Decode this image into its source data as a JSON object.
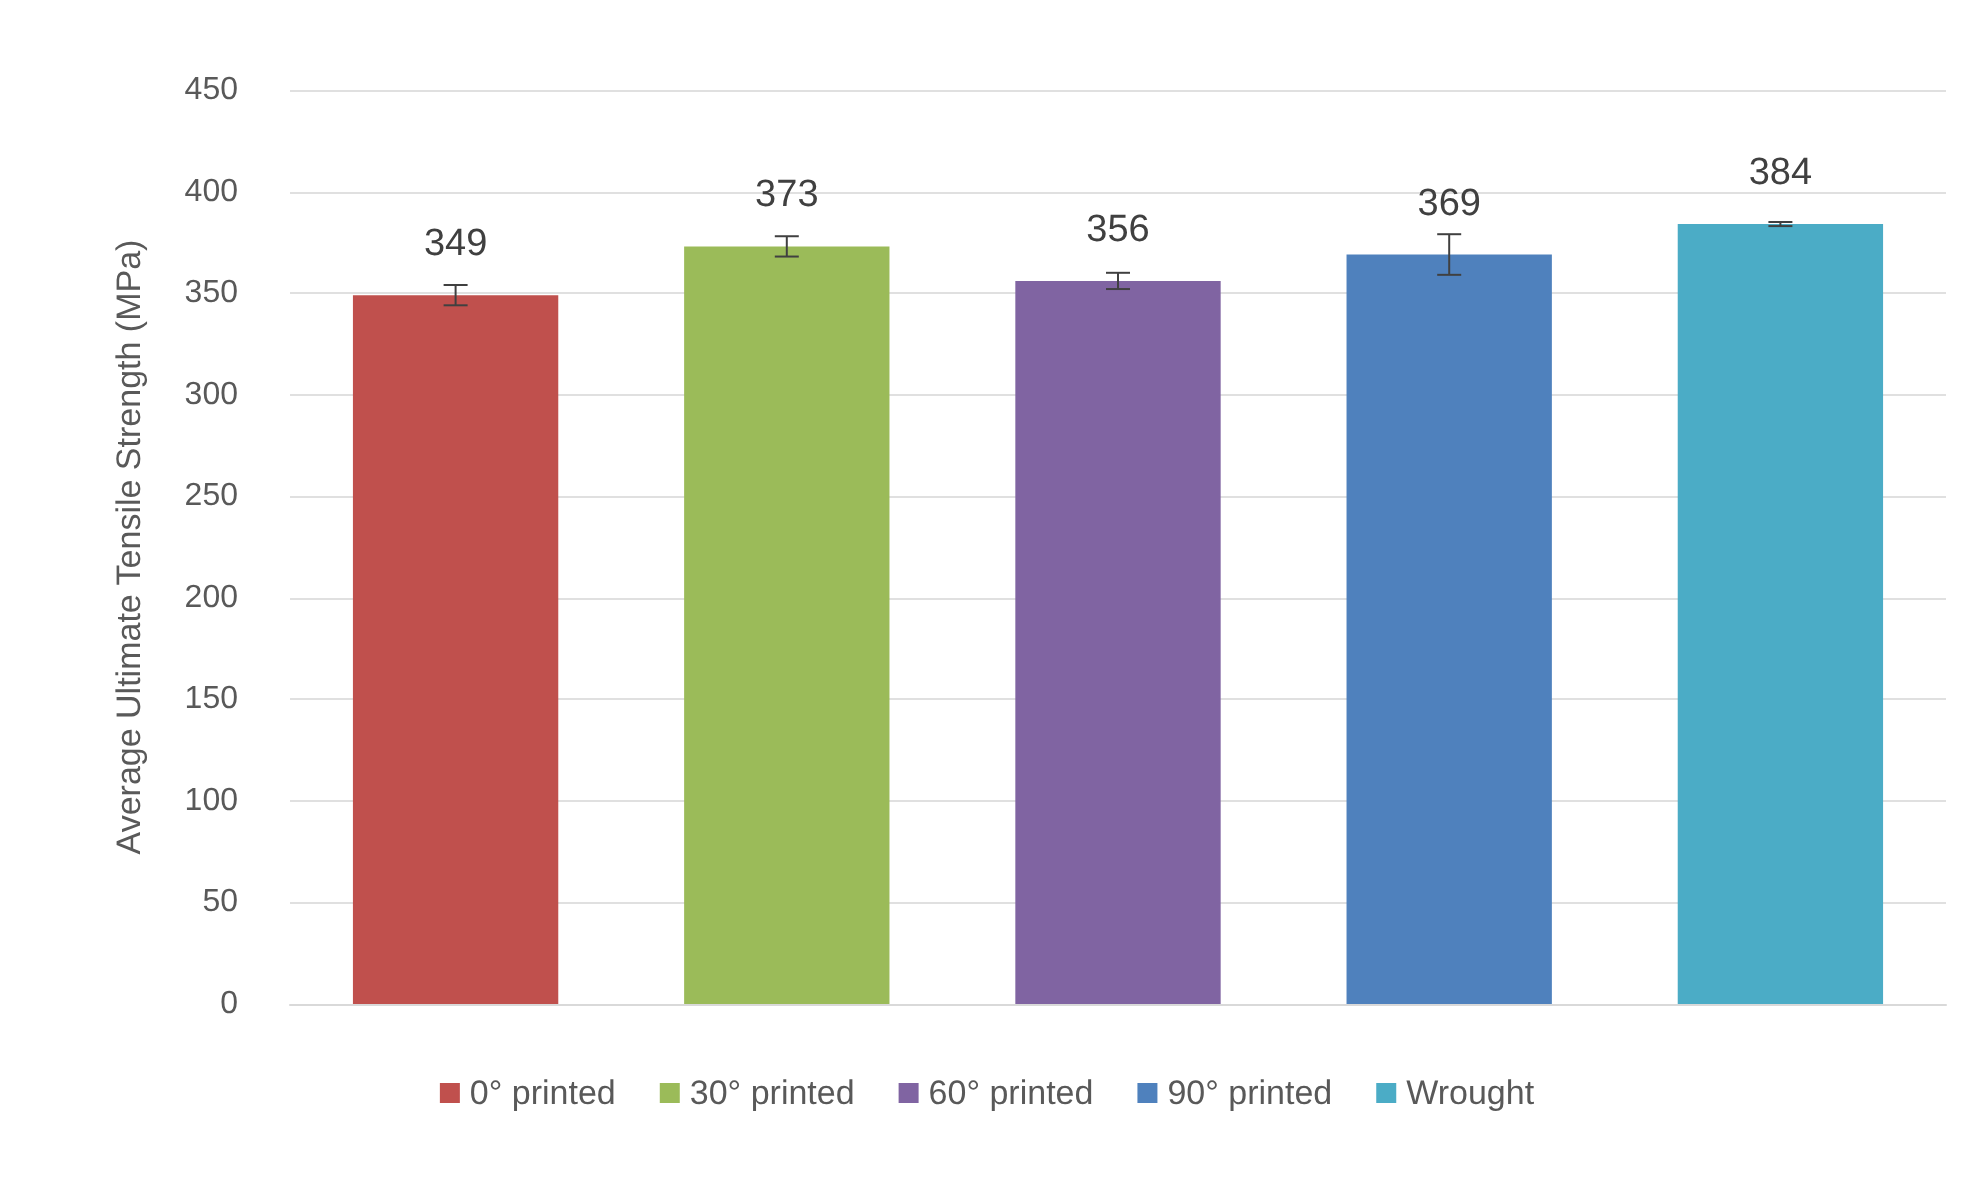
{
  "chart_data": {
    "type": "bar",
    "ylabel": "Average Ultimate Tensile Strength (MPa)",
    "categories": [
      null
    ],
    "series": [
      {
        "name": "0° printed",
        "color": "#c0504d",
        "values": [
          349
        ],
        "errors": [
          5
        ]
      },
      {
        "name": "30° printed",
        "color": "#9bbb59",
        "values": [
          373
        ],
        "errors": [
          5
        ]
      },
      {
        "name": "60° printed",
        "color": "#8064a2",
        "values": [
          356
        ],
        "errors": [
          4
        ]
      },
      {
        "name": "90° printed",
        "color": "#4f81bd",
        "values": [
          369
        ],
        "errors": [
          10
        ]
      },
      {
        "name": "Wrought",
        "color": "#4bacc6",
        "values": [
          384
        ],
        "errors": [
          1
        ]
      }
    ],
    "ylim": [
      0,
      450
    ],
    "yticks": [
      0,
      50,
      100,
      150,
      200,
      250,
      300,
      350,
      400,
      450
    ],
    "grid": "y",
    "legend": "bottom",
    "data_labels": true
  }
}
